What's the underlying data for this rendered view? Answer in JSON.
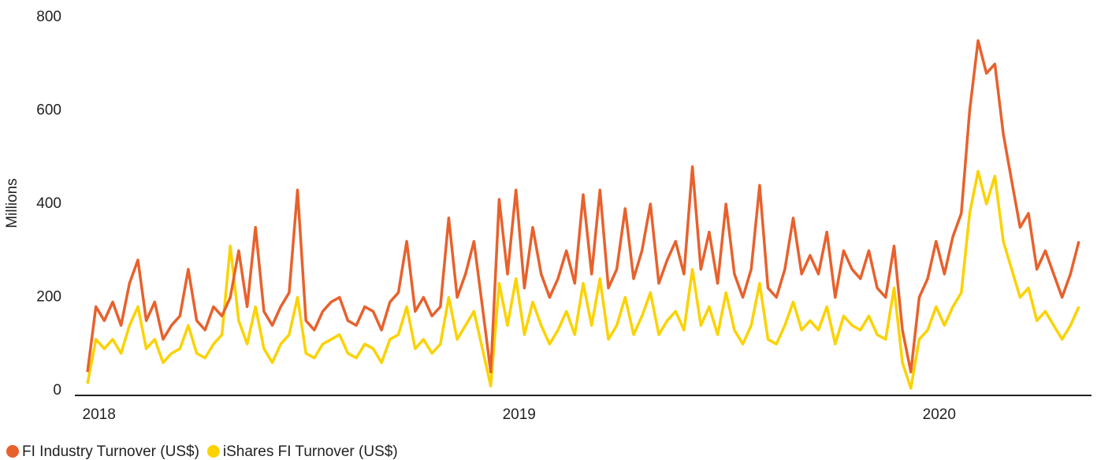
{
  "chart_data": {
    "type": "line",
    "y_label": "Millions",
    "x": [
      2018.01,
      2018.03,
      2018.05,
      2018.07,
      2018.09,
      2018.11,
      2018.13,
      2018.15,
      2018.17,
      2018.19,
      2018.21,
      2018.23,
      2018.25,
      2018.27,
      2018.29,
      2018.31,
      2018.33,
      2018.35,
      2018.37,
      2018.39,
      2018.41,
      2018.43,
      2018.45,
      2018.47,
      2018.49,
      2018.51,
      2018.53,
      2018.55,
      2018.57,
      2018.59,
      2018.61,
      2018.63,
      2018.65,
      2018.67,
      2018.69,
      2018.71,
      2018.73,
      2018.75,
      2018.77,
      2018.79,
      2018.81,
      2018.83,
      2018.85,
      2018.87,
      2018.89,
      2018.91,
      2018.93,
      2018.95,
      2018.97,
      2018.99,
      2019.01,
      2019.03,
      2019.05,
      2019.07,
      2019.09,
      2019.11,
      2019.13,
      2019.15,
      2019.17,
      2019.19,
      2019.21,
      2019.23,
      2019.25,
      2019.27,
      2019.29,
      2019.31,
      2019.33,
      2019.35,
      2019.37,
      2019.39,
      2019.41,
      2019.43,
      2019.45,
      2019.47,
      2019.49,
      2019.51,
      2019.53,
      2019.55,
      2019.57,
      2019.59,
      2019.61,
      2019.63,
      2019.65,
      2019.67,
      2019.69,
      2019.71,
      2019.73,
      2019.75,
      2019.77,
      2019.79,
      2019.81,
      2019.83,
      2019.85,
      2019.87,
      2019.89,
      2019.91,
      2019.93,
      2019.95,
      2019.97,
      2019.99,
      2020.01,
      2020.03,
      2020.05,
      2020.07,
      2020.09,
      2020.11,
      2020.13,
      2020.15,
      2020.17,
      2020.19,
      2020.21,
      2020.23,
      2020.25,
      2020.27,
      2020.29,
      2020.31,
      2020.33,
      2020.35,
      2020.37
    ],
    "series": [
      {
        "name": "FI Industry Turnover (US$)",
        "color": "#e8612c",
        "values": [
          40,
          180,
          150,
          190,
          140,
          230,
          280,
          150,
          190,
          110,
          140,
          160,
          260,
          150,
          130,
          180,
          160,
          200,
          300,
          180,
          350,
          170,
          140,
          180,
          210,
          430,
          150,
          130,
          170,
          190,
          200,
          150,
          140,
          180,
          170,
          130,
          190,
          210,
          320,
          170,
          200,
          160,
          180,
          370,
          200,
          250,
          320,
          180,
          40,
          410,
          250,
          430,
          220,
          350,
          250,
          200,
          240,
          300,
          230,
          420,
          250,
          430,
          220,
          260,
          390,
          240,
          300,
          400,
          230,
          280,
          320,
          250,
          480,
          260,
          340,
          230,
          400,
          250,
          200,
          260,
          440,
          220,
          200,
          260,
          370,
          250,
          290,
          250,
          340,
          200,
          300,
          260,
          240,
          300,
          220,
          200,
          310,
          130,
          40,
          200,
          240,
          320,
          250,
          330,
          380,
          600,
          750,
          680,
          700,
          550,
          450,
          350,
          380,
          260,
          300,
          250,
          200,
          250,
          320
        ]
      },
      {
        "name": "iShares FI Turnover (US$)",
        "color": "#fcd200",
        "values": [
          15,
          110,
          90,
          110,
          80,
          140,
          180,
          90,
          110,
          60,
          80,
          90,
          140,
          80,
          70,
          100,
          120,
          310,
          150,
          100,
          180,
          90,
          60,
          100,
          120,
          200,
          80,
          70,
          100,
          110,
          120,
          80,
          70,
          100,
          90,
          60,
          110,
          120,
          180,
          90,
          110,
          80,
          100,
          200,
          110,
          140,
          170,
          90,
          10,
          230,
          140,
          240,
          120,
          190,
          140,
          100,
          130,
          170,
          120,
          230,
          140,
          240,
          110,
          140,
          200,
          120,
          160,
          210,
          120,
          150,
          170,
          130,
          260,
          140,
          180,
          120,
          210,
          130,
          100,
          140,
          230,
          110,
          100,
          140,
          190,
          130,
          150,
          130,
          180,
          100,
          160,
          140,
          130,
          160,
          120,
          110,
          220,
          60,
          5,
          110,
          130,
          180,
          140,
          180,
          210,
          380,
          470,
          400,
          460,
          320,
          260,
          200,
          220,
          150,
          170,
          140,
          110,
          140,
          180
        ]
      }
    ],
    "xlim": [
      2017.98,
      2020.4
    ],
    "xticks": [
      2018,
      2019,
      2020
    ],
    "ylim": [
      0,
      800
    ],
    "yticks": [
      0,
      200,
      400,
      600,
      800
    ],
    "grid": false
  }
}
